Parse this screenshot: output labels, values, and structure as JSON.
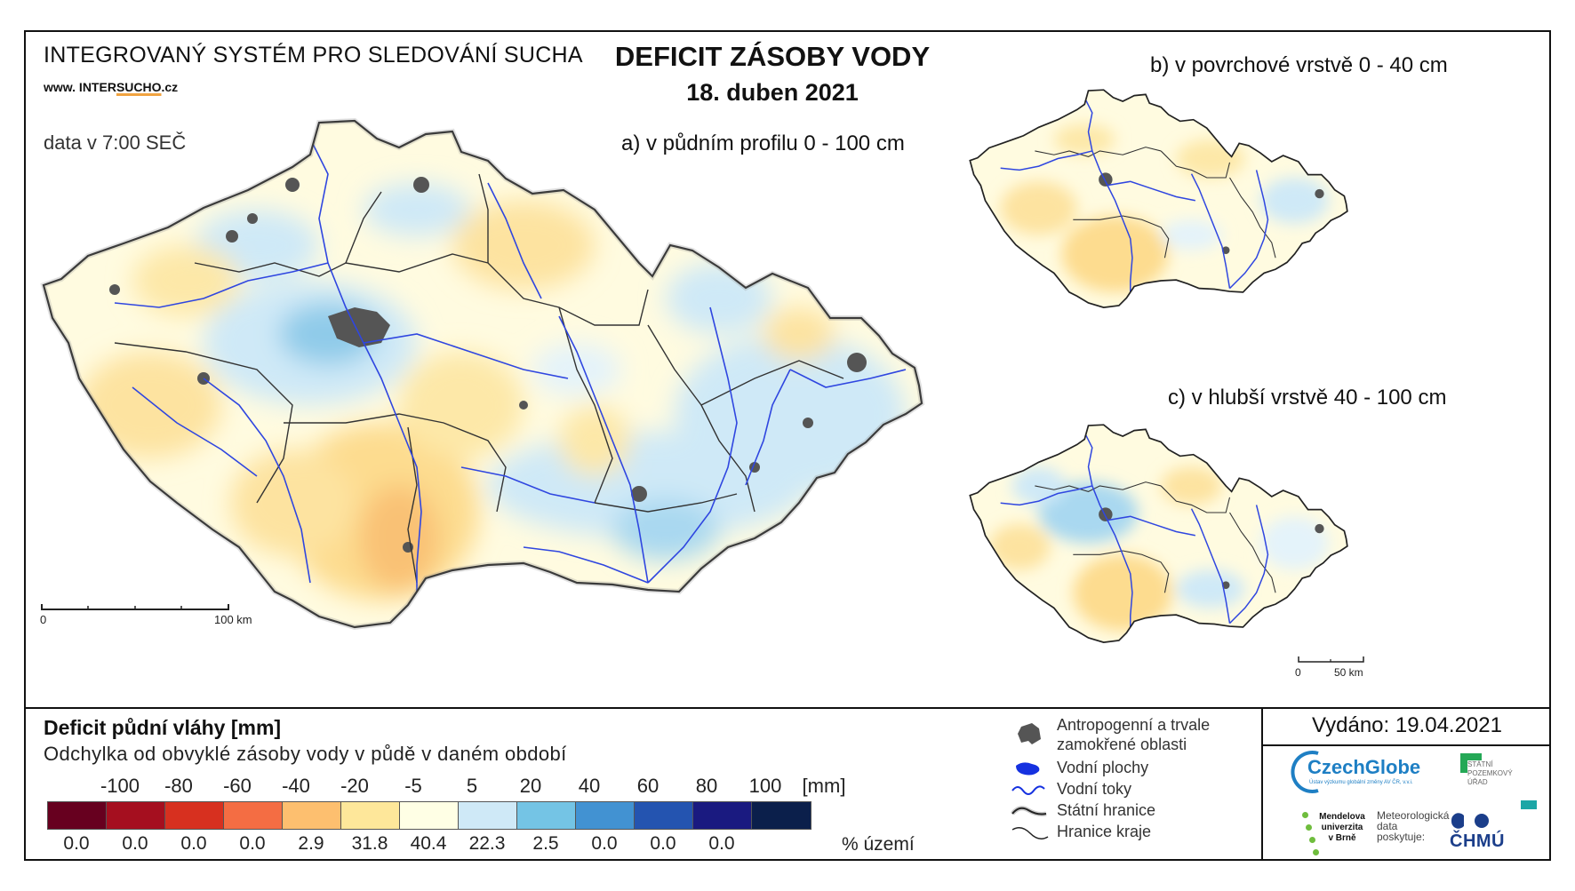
{
  "header": {
    "system_title": "INTEGROVANÝ SYSTÉM PRO SLEDOVÁNÍ SUCHA",
    "website_prefix": "www. INTER",
    "website_brand": "SUCHO",
    "website_suffix": ".cz",
    "data_time": "data v 7:00 SEČ",
    "main_title": "DEFICIT ZÁSOBY VODY",
    "main_date": "18. duben 2021"
  },
  "maps": {
    "a_label": "a) v půdním profilu 0 - 100 cm",
    "b_label": "b) v povrchové vrstvě 0 - 40 cm",
    "c_label": "c) v hlubší vrstvě 40 - 100 cm",
    "scale_main_start": "0",
    "scale_main_end": "100 km",
    "scale_small_start": "0",
    "scale_small_end": "50 km"
  },
  "legend": {
    "title": "Deficit půdní vláhy  [mm]",
    "subtitle": "Odchylka od obvyklé zásoby vody v půdě v daném období",
    "tick_labels": [
      "-100",
      "-80",
      "-60",
      "-40",
      "-20",
      "-5",
      "5",
      "20",
      "40",
      "60",
      "80",
      "100",
      "[mm]"
    ],
    "class_colors": [
      "#67001f",
      "#a50f1f",
      "#d7301f",
      "#f46d43",
      "#fdbf6f",
      "#fee79a",
      "#ffffe5",
      "#cfe9f7",
      "#74c4e5",
      "#4292d2",
      "#2454b0",
      "#1a1a80",
      "#0b1f4b"
    ],
    "percent_values": [
      "0.0",
      "0.0",
      "0.0",
      "0.0",
      "2.9",
      "31.8",
      "40.4",
      "22.3",
      "2.5",
      "0.0",
      "0.0",
      "0.0"
    ],
    "percent_unit": "% území"
  },
  "symbols": {
    "antro_line1": "Antropogenní a trvale",
    "antro_line2": "zamokřené oblasti",
    "water_bodies": "Vodní plochy",
    "water_streams": "Vodní toky",
    "state_border": "Státní hranice",
    "region_border": "Hranice kraje"
  },
  "issued": {
    "text": "Vydáno: 19.04.2021",
    "czechglobe": "CzechGlobe",
    "czechglobe_sub": "Ústav výzkumu globální změny AV ČR, v.v.i.",
    "spu_line1": "STÁTNÍ",
    "spu_line2": "POZEMKOVÝ",
    "spu_line3": "ÚŘAD",
    "mendel_line1": "Mendelova",
    "mendel_line2": "univerzita",
    "mendel_line3": "v Brně",
    "met_line1": "Meteorologická",
    "met_line2": "data",
    "met_line3": "poskytuje:",
    "chmu": "ČHMÚ"
  }
}
